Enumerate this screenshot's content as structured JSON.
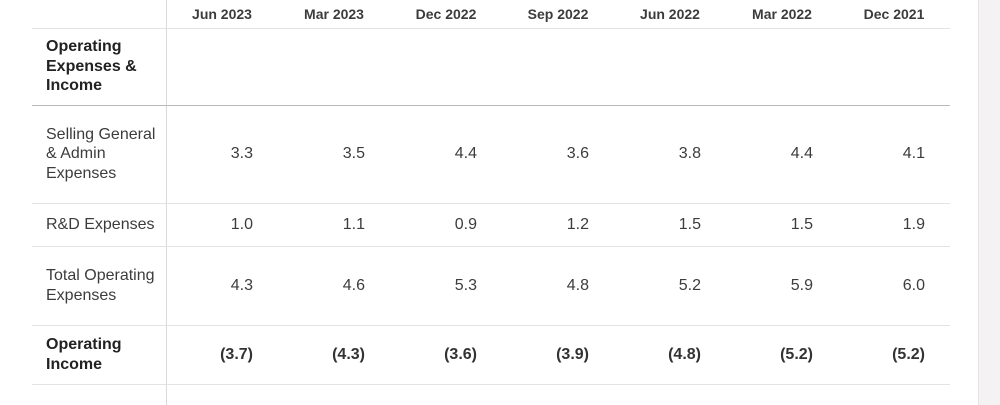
{
  "table": {
    "periods": [
      "Jun 2023",
      "Mar 2023",
      "Dec 2022",
      "Sep 2022",
      "Jun 2022",
      "Mar 2022",
      "Dec 2021"
    ],
    "section_title": "Operating Expenses & Income",
    "rows": [
      {
        "label": "Selling General & Admin Expenses",
        "values": [
          "3.3",
          "3.5",
          "4.4",
          "3.6",
          "3.8",
          "4.4",
          "4.1"
        ],
        "bold": false
      },
      {
        "label": "R&D Expenses",
        "values": [
          "1.0",
          "1.1",
          "0.9",
          "1.2",
          "1.5",
          "1.5",
          "1.9"
        ],
        "bold": false
      },
      {
        "label": "Total Operating Expenses",
        "values": [
          "4.3",
          "4.6",
          "5.3",
          "4.8",
          "5.2",
          "5.9",
          "6.0"
        ],
        "bold": false
      },
      {
        "label": "Operating Income",
        "values": [
          "(3.7)",
          "(4.3)",
          "(3.6)",
          "(3.9)",
          "(4.8)",
          "(5.2)",
          "(5.2)"
        ],
        "bold": true
      }
    ]
  }
}
